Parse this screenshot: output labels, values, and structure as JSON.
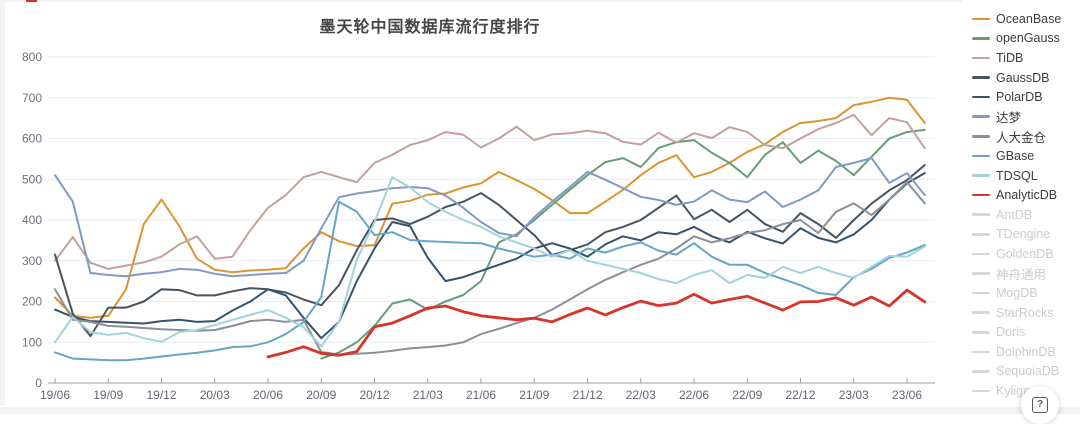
{
  "page": {
    "title": "墨天轮中国数据库流行度排行"
  },
  "help_button": {
    "icon": "?"
  },
  "chart_data": {
    "type": "line",
    "title": "墨天轮中国数据库流行度排行",
    "xlabel": "",
    "ylabel": "",
    "ylim": [
      0,
      800
    ],
    "y_step": 100,
    "grid": true,
    "legend_position": "right",
    "x_start_month": "2019-06",
    "x_tick_every": 3,
    "x_ticks": [
      "19/06",
      "19/09",
      "19/12",
      "20/03",
      "20/06",
      "20/09",
      "20/12",
      "21/03",
      "21/06",
      "21/09",
      "21/12",
      "22/03",
      "22/06",
      "22/09",
      "22/12",
      "23/03",
      "23/06"
    ],
    "series": [
      {
        "name": "OceanBase",
        "color": "#dd9430",
        "width": 2,
        "values": [
          210,
          165,
          160,
          165,
          230,
          390,
          450,
          385,
          305,
          278,
          272,
          276,
          278,
          282,
          330,
          370,
          348,
          336,
          338,
          440,
          447,
          462,
          465,
          480,
          490,
          518,
          498,
          476,
          449,
          417,
          417,
          445,
          474,
          510,
          540,
          559,
          505,
          518,
          540,
          567,
          586,
          616,
          638,
          643,
          650,
          682,
          690,
          700,
          695,
          638
        ]
      },
      {
        "name": "openGauss",
        "color": "#679e77",
        "width": 2,
        "values": [
          null,
          null,
          null,
          null,
          null,
          null,
          null,
          null,
          null,
          null,
          null,
          null,
          null,
          null,
          null,
          60,
          75,
          100,
          140,
          195,
          205,
          180,
          200,
          216,
          250,
          345,
          365,
          400,
          437,
          474,
          510,
          542,
          552,
          530,
          577,
          591,
          596,
          565,
          540,
          505,
          560,
          591,
          540,
          570,
          545,
          510,
          555,
          600,
          616,
          621
        ]
      },
      {
        "name": "TiDB",
        "color": "#c2a29b",
        "width": 2,
        "values": [
          300,
          358,
          295,
          280,
          288,
          296,
          310,
          340,
          360,
          305,
          310,
          375,
          430,
          461,
          505,
          518,
          505,
          493,
          540,
          560,
          584,
          596,
          616,
          609,
          578,
          600,
          629,
          596,
          610,
          613,
          619,
          613,
          592,
          585,
          614,
          590,
          613,
          601,
          628,
          616,
          584,
          576,
          600,
          623,
          638,
          658,
          608,
          650,
          640,
          576
        ]
      },
      {
        "name": "GaussDB",
        "color": "#47545e",
        "width": 2,
        "values": [
          315,
          170,
          115,
          185,
          185,
          200,
          230,
          228,
          215,
          215,
          225,
          233,
          230,
          222,
          205,
          191,
          240,
          326,
          400,
          404,
          390,
          408,
          432,
          445,
          466,
          437,
          400,
          363,
          314,
          326,
          340,
          370,
          383,
          400,
          430,
          460,
          402,
          425,
          395,
          425,
          390,
          371,
          417,
          390,
          356,
          400,
          440,
          473,
          498,
          535
        ]
      },
      {
        "name": "PolarDB",
        "color": "#34536e",
        "width": 2,
        "values": [
          180,
          162,
          152,
          150,
          148,
          146,
          152,
          155,
          150,
          152,
          178,
          200,
          230,
          215,
          160,
          110,
          150,
          250,
          330,
          395,
          385,
          307,
          250,
          260,
          275,
          290,
          305,
          330,
          343,
          330,
          310,
          340,
          360,
          350,
          370,
          365,
          383,
          360,
          345,
          371,
          355,
          342,
          380,
          356,
          345,
          365,
          400,
          450,
          490,
          515
        ]
      },
      {
        "name": "达梦",
        "color": "#7f9bc4",
        "width": 2,
        "values": [
          510,
          445,
          270,
          265,
          262,
          268,
          272,
          280,
          278,
          268,
          262,
          265,
          268,
          270,
          300,
          380,
          456,
          465,
          471,
          478,
          481,
          478,
          460,
          430,
          395,
          368,
          360,
          407,
          445,
          481,
          518,
          499,
          478,
          457,
          449,
          437,
          445,
          473,
          450,
          444,
          470,
          432,
          450,
          473,
          530,
          540,
          552,
          491,
          515,
          461
        ]
      },
      {
        "name": "人大金仓",
        "color": "#8a9096",
        "width": 2,
        "values": [
          230,
          155,
          150,
          140,
          138,
          135,
          132,
          130,
          128,
          130,
          140,
          152,
          155,
          150,
          155,
          76,
          70,
          72,
          74,
          79,
          85,
          88,
          92,
          100,
          120,
          133,
          147,
          160,
          180,
          205,
          230,
          253,
          272,
          290,
          305,
          330,
          360,
          345,
          355,
          368,
          375,
          390,
          400,
          368,
          420,
          441,
          412,
          450,
          493,
          441
        ]
      },
      {
        "name": "GBase",
        "color": "#64a6c3",
        "width": 2,
        "values": [
          75,
          60,
          58,
          56,
          56,
          60,
          65,
          70,
          74,
          80,
          88,
          90,
          100,
          120,
          150,
          211,
          445,
          420,
          363,
          370,
          351,
          348,
          346,
          344,
          343,
          330,
          320,
          310,
          315,
          305,
          330,
          320,
          335,
          345,
          325,
          315,
          343,
          310,
          290,
          290,
          270,
          255,
          240,
          221,
          216,
          260,
          280,
          307,
          320,
          339
        ]
      },
      {
        "name": "TDSQL",
        "color": "#a2d3db",
        "width": 2,
        "values": [
          100,
          162,
          125,
          118,
          123,
          110,
          101,
          125,
          130,
          142,
          155,
          167,
          179,
          160,
          137,
          90,
          150,
          302,
          395,
          505,
          480,
          444,
          420,
          400,
          383,
          360,
          345,
          330,
          310,
          326,
          300,
          290,
          280,
          270,
          255,
          245,
          265,
          277,
          245,
          265,
          258,
          285,
          270,
          285,
          270,
          258,
          285,
          312,
          310,
          335
        ]
      },
      {
        "name": "AnalyticDB",
        "color": "#d7342a",
        "width": 2.8,
        "values": [
          null,
          null,
          null,
          null,
          null,
          null,
          null,
          null,
          null,
          null,
          null,
          null,
          64,
          75,
          89,
          73,
          68,
          77,
          138,
          147,
          165,
          184,
          189,
          175,
          165,
          160,
          155,
          159,
          150,
          168,
          184,
          167,
          185,
          201,
          190,
          196,
          218,
          196,
          205,
          213,
          196,
          179,
          199,
          200,
          209,
          191,
          211,
          189,
          228,
          199
        ]
      }
    ]
  },
  "legend": {
    "items": [
      {
        "label": "OceanBase",
        "color": "#dd9430",
        "enabled": true
      },
      {
        "label": "openGauss",
        "color": "#679e77",
        "enabled": true
      },
      {
        "label": "TiDB",
        "color": "#c2a29b",
        "enabled": true
      },
      {
        "label": "GaussDB",
        "color": "#47545e",
        "enabled": true
      },
      {
        "label": "PolarDB",
        "color": "#34536e",
        "enabled": true
      },
      {
        "label": "达梦",
        "color": "#7f9bc4",
        "enabled": true
      },
      {
        "label": "人大金仓",
        "color": "#8a9096",
        "enabled": true
      },
      {
        "label": "GBase",
        "color": "#64a6c3",
        "enabled": true
      },
      {
        "label": "TDSQL",
        "color": "#a2d3db",
        "enabled": true
      },
      {
        "label": "AnalyticDB",
        "color": "#d7342a",
        "enabled": true
      },
      {
        "label": "AntDB",
        "color": "#d6d6d6",
        "enabled": false
      },
      {
        "label": "TDengine",
        "color": "#d6d6d6",
        "enabled": false
      },
      {
        "label": "GoldenDB",
        "color": "#d6d6d6",
        "enabled": false
      },
      {
        "label": "神舟通用",
        "color": "#d6d6d6",
        "enabled": false
      },
      {
        "label": "MogDB",
        "color": "#d6d6d6",
        "enabled": false
      },
      {
        "label": "StarRocks",
        "color": "#d6d6d6",
        "enabled": false
      },
      {
        "label": "Doris",
        "color": "#d6d6d6",
        "enabled": false
      },
      {
        "label": "DolphinDB",
        "color": "#d6d6d6",
        "enabled": false
      },
      {
        "label": "SequoiaDB",
        "color": "#d6d6d6",
        "enabled": false
      },
      {
        "label": "Kyligence",
        "color": "#d6d6d6",
        "enabled": false
      }
    ]
  },
  "style": {
    "grid_color": "#e6edf4",
    "axis_color": "#9aa0a6",
    "title_color": "#464646"
  }
}
